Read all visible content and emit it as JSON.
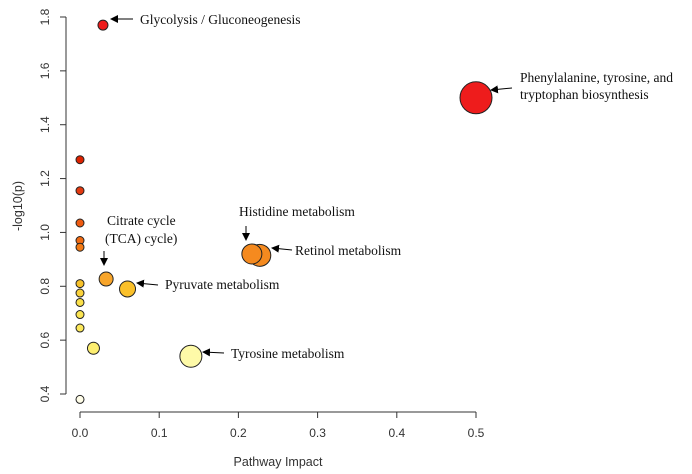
{
  "chart_data": {
    "type": "scatter",
    "title": "",
    "xlabel": "Pathway Impact",
    "ylabel": "-log10(p)",
    "xlim": [
      0,
      0.5
    ],
    "ylim": [
      0.4,
      1.8
    ],
    "xticks": [
      0.0,
      0.1,
      0.2,
      0.3,
      0.4,
      0.5
    ],
    "xtick_labels": [
      "0.0",
      "0.1",
      "0.2",
      "0.3",
      "0.4",
      "0.5"
    ],
    "yticks": [
      0.4,
      0.6,
      0.8,
      1.0,
      1.2,
      1.4,
      1.6,
      1.8
    ],
    "ytick_labels": [
      "0.4",
      "0.6",
      "0.8",
      "1.0",
      "1.2",
      "1.4",
      "1.6",
      "1.8"
    ],
    "encoding": "point color ramps from pale yellow (low -log10(p)) to red (high -log10(p)); point size reflects pathway impact",
    "points": [
      {
        "name": "Glycolysis / Gluconeogenesis",
        "x": 0.029,
        "y": 1.77,
        "color": "#ee1c1c",
        "size": 5
      },
      {
        "name": "Phenylalanine, tyrosine, and tryptophan biosynthesis",
        "x": 0.5,
        "y": 1.5,
        "color": "#ee1c1c",
        "size": 16
      },
      {
        "name": "",
        "x": 0.0,
        "y": 1.27,
        "color": "#dd2200",
        "size": 4
      },
      {
        "name": "",
        "x": 0.0,
        "y": 1.155,
        "color": "#e33a10",
        "size": 4
      },
      {
        "name": "",
        "x": 0.0,
        "y": 1.035,
        "color": "#ee5a10",
        "size": 4
      },
      {
        "name": "",
        "x": 0.0,
        "y": 0.97,
        "color": "#f06a12",
        "size": 4
      },
      {
        "name": "",
        "x": 0.0,
        "y": 0.945,
        "color": "#f37a14",
        "size": 4
      },
      {
        "name": "Histidine metabolism",
        "x": 0.217,
        "y": 0.92,
        "color": "#f58a1f",
        "size": 10
      },
      {
        "name": "Retinol metabolism",
        "x": 0.227,
        "y": 0.915,
        "color": "#f58a1f",
        "size": 11
      },
      {
        "name": "Citrate cycle (TCA) cycle)",
        "x": 0.033,
        "y": 0.827,
        "color": "#f8a52a",
        "size": 7
      },
      {
        "name": "",
        "x": 0.0,
        "y": 0.81,
        "color": "#f8c22a",
        "size": 4
      },
      {
        "name": "Pyruvate metabolism",
        "x": 0.06,
        "y": 0.79,
        "color": "#fac02a",
        "size": 8
      },
      {
        "name": "",
        "x": 0.0,
        "y": 0.775,
        "color": "#fad23c",
        "size": 4
      },
      {
        "name": "",
        "x": 0.0,
        "y": 0.74,
        "color": "#fbe04a",
        "size": 4
      },
      {
        "name": "",
        "x": 0.0,
        "y": 0.695,
        "color": "#fbe452",
        "size": 4
      },
      {
        "name": "",
        "x": 0.0,
        "y": 0.645,
        "color": "#fce85a",
        "size": 4
      },
      {
        "name": "",
        "x": 0.017,
        "y": 0.57,
        "color": "#fdee70",
        "size": 6
      },
      {
        "name": "Tyrosine metabolism",
        "x": 0.14,
        "y": 0.54,
        "color": "#fefaa8",
        "size": 11
      },
      {
        "name": "",
        "x": 0.0,
        "y": 0.38,
        "color": "#fffde8",
        "size": 4
      }
    ],
    "annotations": [
      {
        "id": "glycolysis",
        "lines": [
          "Glycolysis / Gluconeogenesis"
        ]
      },
      {
        "id": "phenylalanine",
        "lines": [
          "Phenylalanine, tyrosine, and",
          "tryptophan biosynthesis"
        ]
      },
      {
        "id": "citrate",
        "lines": [
          "Citrate cycle",
          "(TCA) cycle)"
        ]
      },
      {
        "id": "histidine",
        "lines": [
          "Histidine metabolism"
        ]
      },
      {
        "id": "retinol",
        "lines": [
          "Retinol metabolism"
        ]
      },
      {
        "id": "pyruvate",
        "lines": [
          "Pyruvate metabolism"
        ]
      },
      {
        "id": "tyrosine",
        "lines": [
          "Tyrosine metabolism"
        ]
      }
    ]
  }
}
